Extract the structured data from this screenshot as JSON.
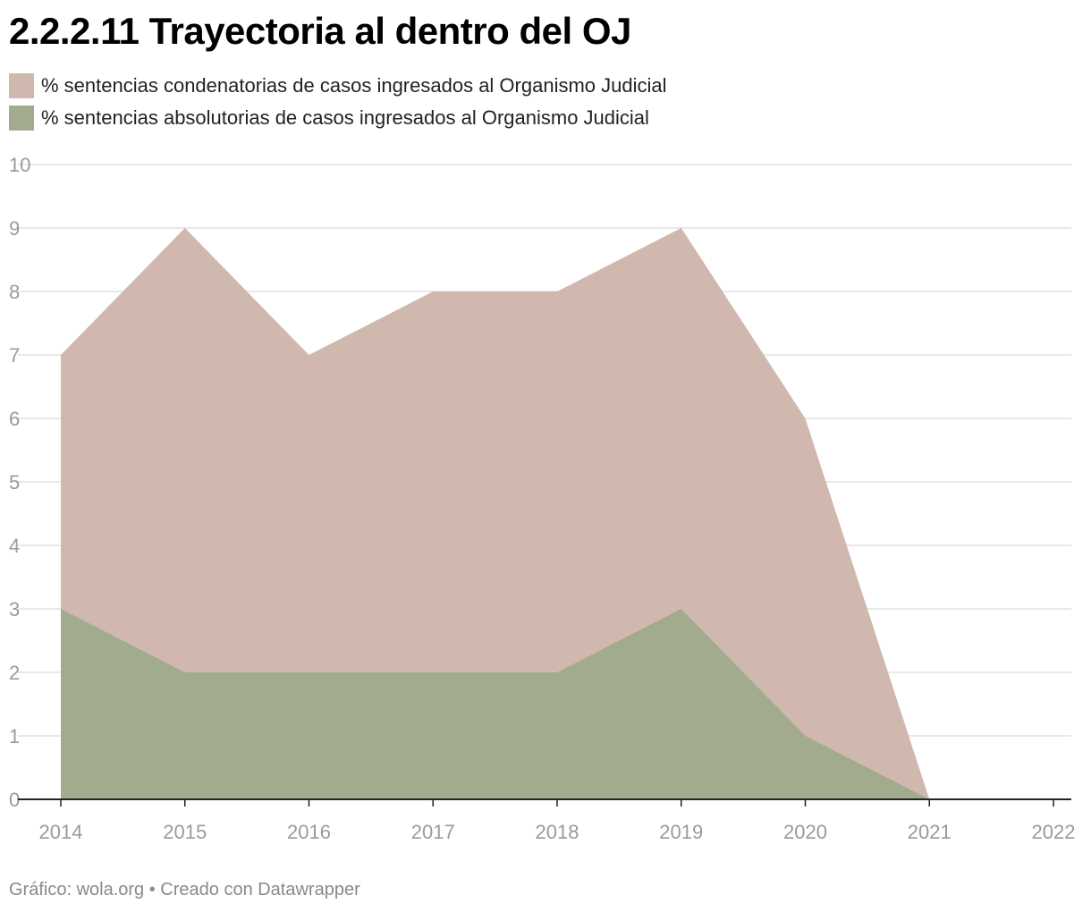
{
  "title": "2.2.2.11 Trayectoria al dentro del OJ",
  "legend": [
    {
      "label": "% sentencias condenatorias de casos ingresados al Organismo Judicial",
      "color": "#d0b8af"
    },
    {
      "label": "% sentencias absolutorias de casos ingresados al Organismo Judicial",
      "color": "#a2ab8e"
    }
  ],
  "footer": "Gráfico: wola.org • Creado con Datawrapper",
  "chart_data": {
    "type": "area",
    "stacked": false,
    "x": [
      2014,
      2015,
      2016,
      2017,
      2018,
      2019,
      2020,
      2021,
      2022
    ],
    "xlim": [
      2014,
      2022
    ],
    "ylim": [
      0,
      10
    ],
    "yticks": [
      0,
      1,
      2,
      3,
      4,
      5,
      6,
      7,
      8,
      9,
      10
    ],
    "grid": true,
    "series": [
      {
        "name": "% sentencias condenatorias de casos ingresados al Organismo Judicial",
        "x": [
          2014,
          2015,
          2016,
          2017,
          2018,
          2019,
          2020,
          2021
        ],
        "values": [
          7,
          9,
          7,
          8,
          8,
          9,
          6,
          0
        ],
        "color": "#d0b8af"
      },
      {
        "name": "% sentencias absolutorias de casos ingresados al Organismo Judicial",
        "x": [
          2014,
          2015,
          2016,
          2017,
          2018,
          2019,
          2020,
          2021
        ],
        "values": [
          3,
          2,
          2,
          2,
          2,
          3,
          1,
          0
        ],
        "color": "#a2ab8e"
      }
    ]
  }
}
